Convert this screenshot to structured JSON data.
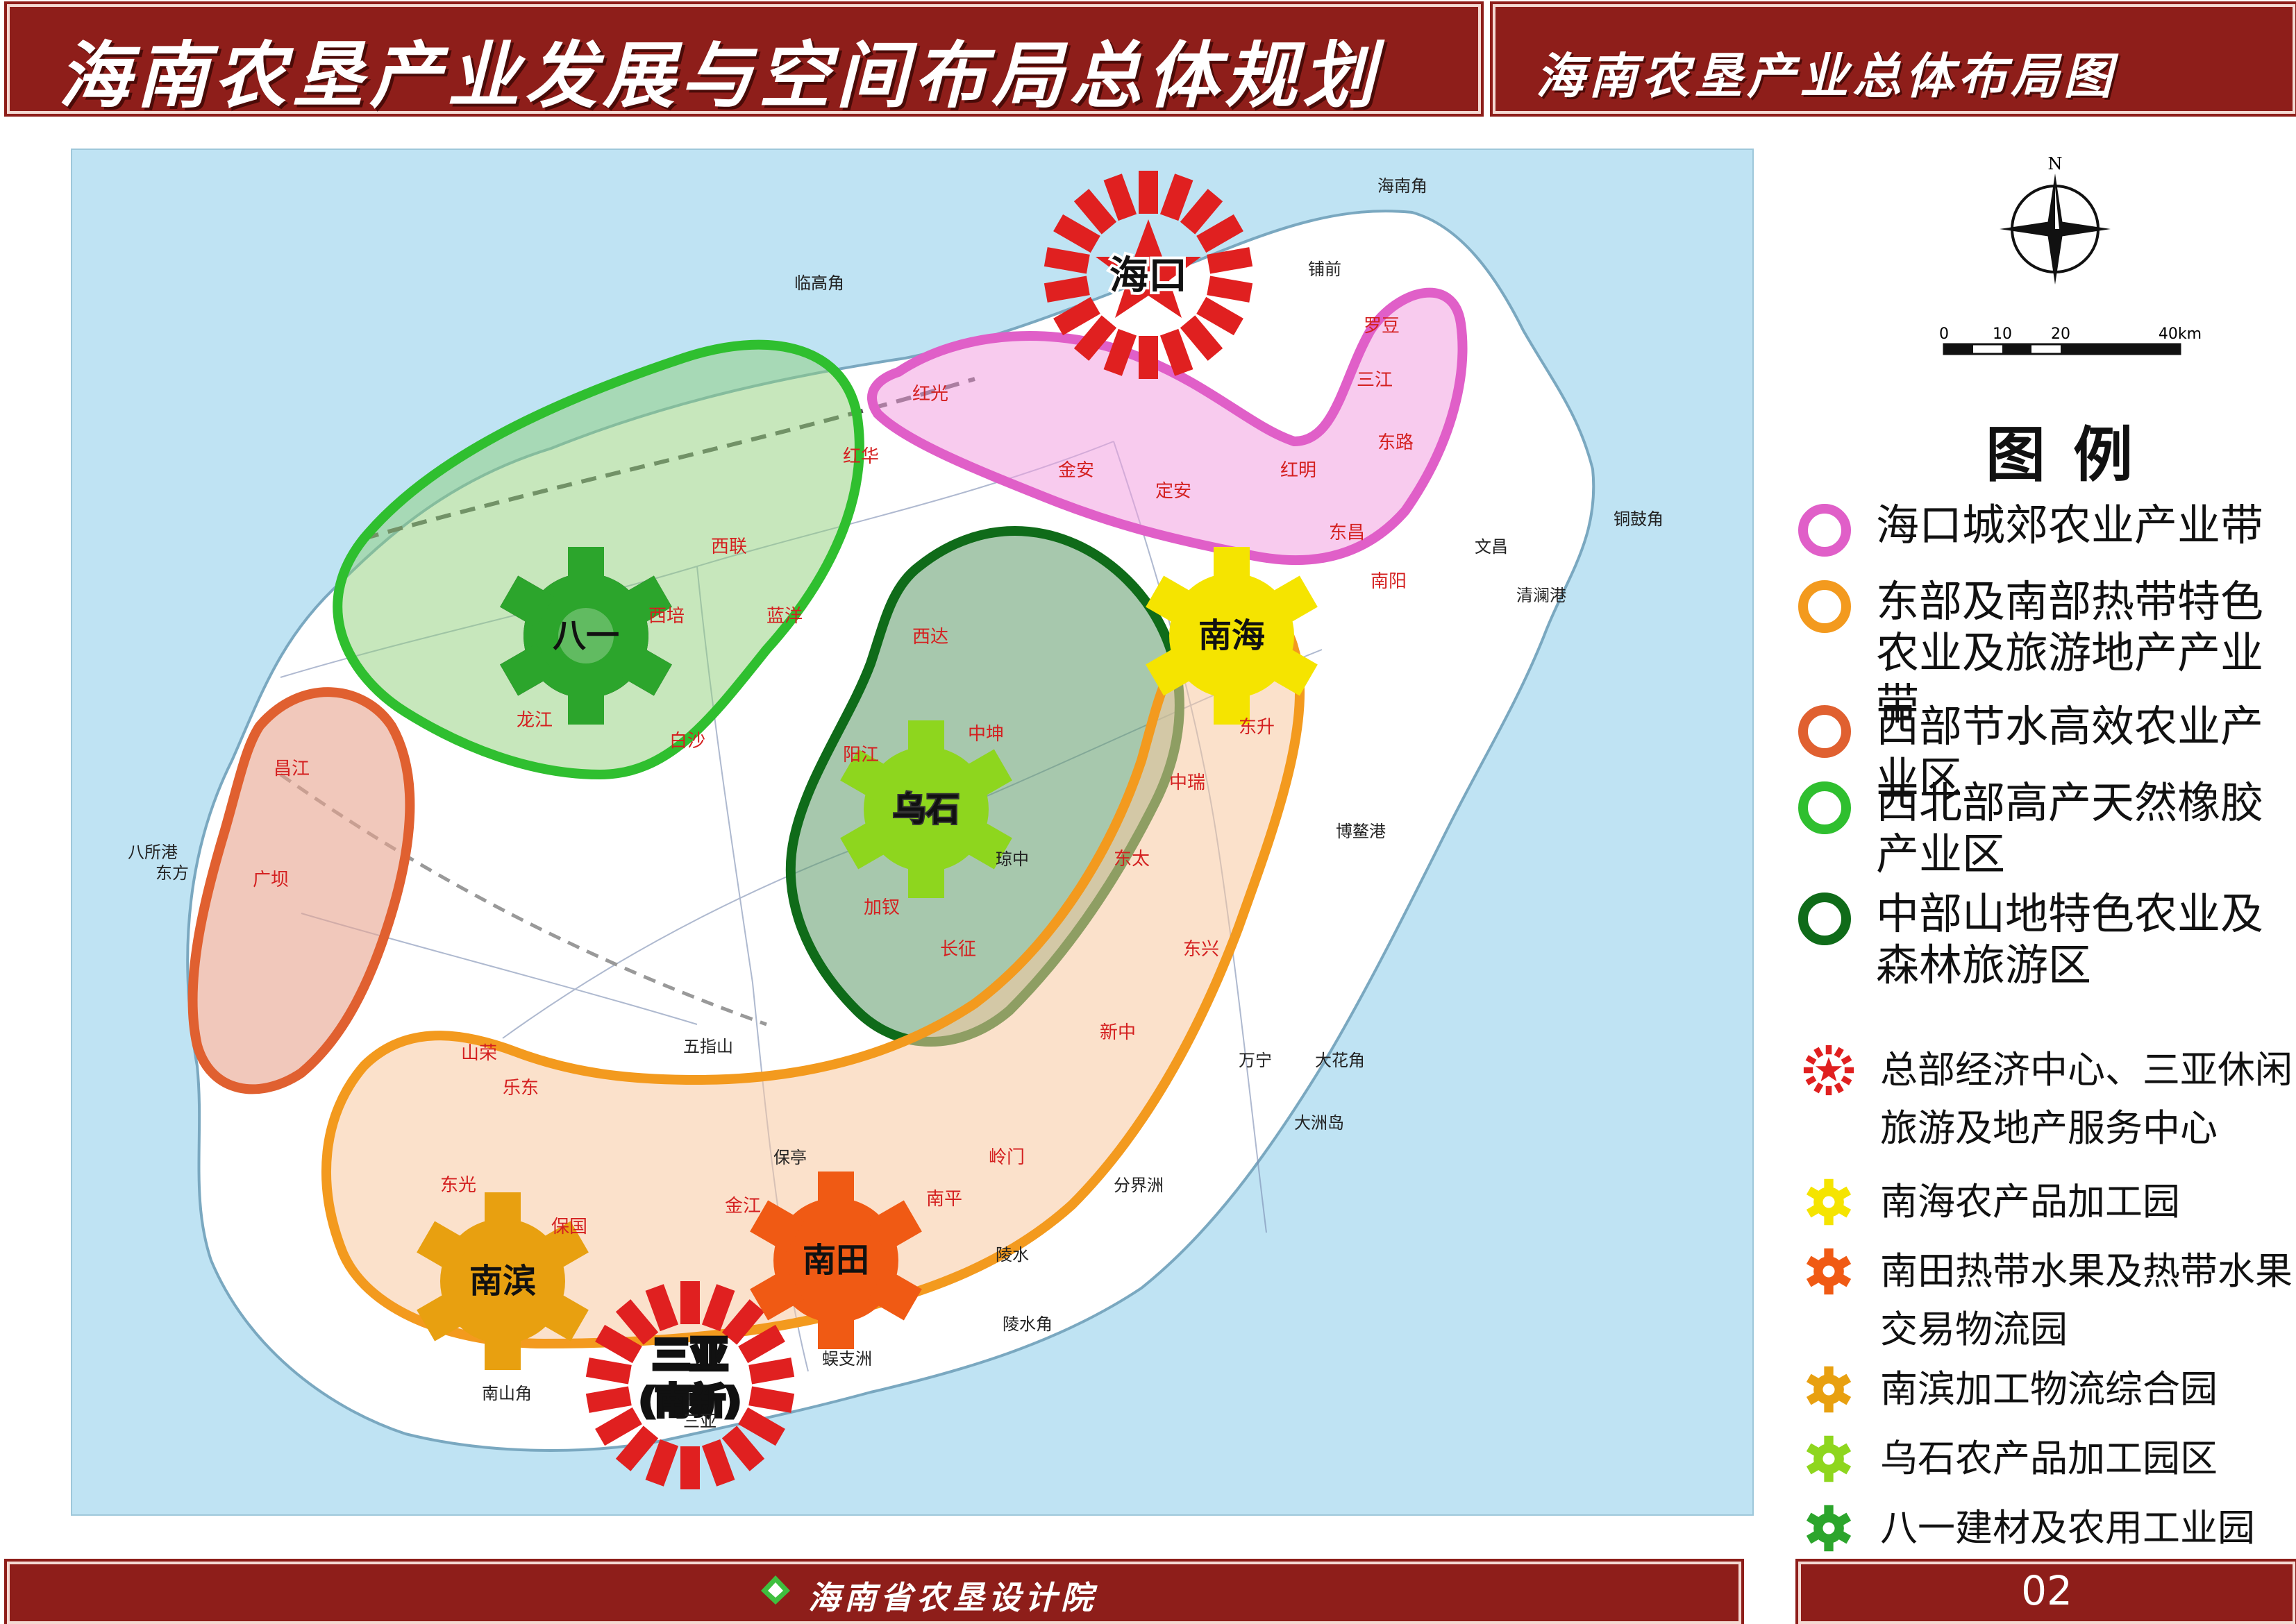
{
  "header": {
    "title": "海南农垦产业发展与空间布局总体规划",
    "subtitle": "海南农垦产业总体布局图"
  },
  "footer": {
    "org": "海南省农垦设计院",
    "page": "02"
  },
  "colors": {
    "header_bg": "#8e1e1a",
    "sea": "#bfe3f3",
    "haikou_belt": "#e05fc8",
    "east_south_belt": "#f39a1e",
    "west_zone": "#e06030",
    "northwest_zone": "#2fbf2f",
    "central_zone": "#0f6b19",
    "hq_star": "#e02020",
    "nanhai_gear": "#f5e400",
    "nantian_gear": "#f05a14",
    "nanbin_gear": "#e8a010",
    "wushi_gear": "#8ed61e",
    "bayi_gear": "#2ca52c"
  },
  "compass": {
    "north": "N"
  },
  "scale_bar": {
    "ticks": [
      "0",
      "10",
      "20",
      "40km"
    ]
  },
  "legend": {
    "title": "图例",
    "zones": [
      {
        "label": "海口城郊农业产业带",
        "icon": "pink-ring-icon",
        "color": "#e05fc8"
      },
      {
        "label": "东部及南部热带特色农业及旅游地产产业带",
        "icon": "orange-ring-icon",
        "color": "#f39a1e"
      },
      {
        "label": "西部节水高效农业产业区",
        "icon": "red-orange-ring-icon",
        "color": "#e06030"
      },
      {
        "label": "西北部高产天然橡胶产业区",
        "icon": "green-ring-icon",
        "color": "#2fbf2f"
      },
      {
        "label": "中部山地特色农业及森林旅游区",
        "icon": "dark-green-ring-icon",
        "color": "#0f6b19"
      }
    ],
    "sites": [
      {
        "label": "总部经济中心、三亚休闲旅游及地产服务中心",
        "icon": "red-star-burst-icon",
        "color": "#e02020"
      },
      {
        "label": "南海农产品加工园",
        "icon": "yellow-gear-icon",
        "color": "#f5e400"
      },
      {
        "label": "南田热带水果及热带水果交易物流园",
        "icon": "orange-red-gear-icon",
        "color": "#f05a14"
      },
      {
        "label": "南滨加工物流综合园",
        "icon": "amber-gear-icon",
        "color": "#e8a010"
      },
      {
        "label": "乌石农产品加工园区",
        "icon": "light-green-gear-icon",
        "color": "#8ed61e"
      },
      {
        "label": "八一建材及农用工业园",
        "icon": "green-gear-icon",
        "color": "#2ca52c"
      }
    ]
  },
  "map": {
    "hubs": {
      "haikou": "海口",
      "sanya_1": "三亚",
      "sanya_2": "(南新)",
      "nanhai": "南海",
      "wushi": "乌石",
      "bayi": "八一",
      "nantian": "南田",
      "nanbin": "南滨"
    },
    "places": {
      "haikou_belt": [
        "红光",
        "金安",
        "定安",
        "红明",
        "东昌",
        "罗豆",
        "三江",
        "东路",
        "南阳"
      ],
      "northwest": [
        "红华",
        "西联",
        "西培",
        "龙江",
        "白沙",
        "蓝洋"
      ],
      "central": [
        "西达",
        "中坤",
        "阳江",
        "加钗",
        "长征",
        "琼中"
      ],
      "west": [
        "昌江",
        "广坝",
        "东方"
      ],
      "east_south": [
        "东升",
        "中瑞",
        "东太",
        "东兴",
        "新中",
        "岭门",
        "南平",
        "金江",
        "保国",
        "东光",
        "山荣",
        "乐东",
        "保亭"
      ],
      "coast": [
        "海南角",
        "铺前",
        "临高角",
        "铜鼓角",
        "文昌",
        "清澜港",
        "博鳌港",
        "万宁",
        "大花角",
        "大洲岛",
        "分界洲",
        "陵水",
        "陵水角",
        "蜈支洲",
        "南山角",
        "八所港",
        "五指山",
        "三亚"
      ]
    }
  }
}
